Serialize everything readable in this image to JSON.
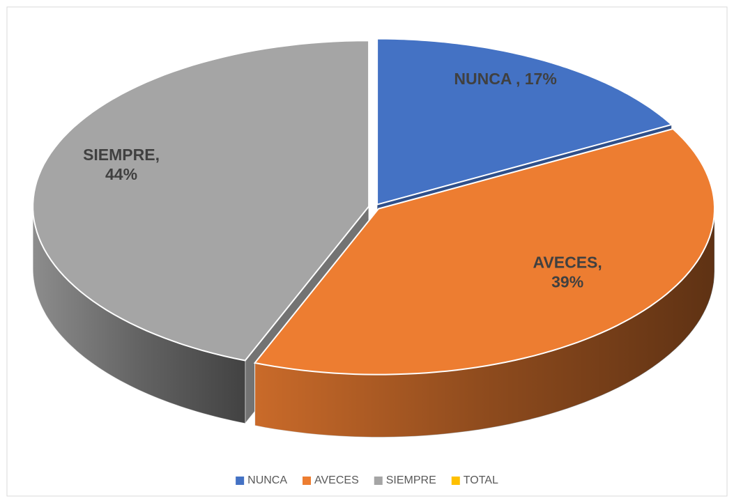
{
  "chart_data": {
    "type": "pie3d",
    "categories": [
      "NUNCA",
      "AVECES",
      "SIEMPRE",
      "TOTAL"
    ],
    "values": [
      17,
      39,
      44,
      null
    ],
    "value_labels": [
      "NUNCA , 17%",
      "AVECES, 39%",
      "SIEMPRE, 44%",
      null
    ],
    "colors": [
      "#4472c4",
      "#ed7d31",
      "#a5a5a5",
      "#ffc000"
    ],
    "legend": "bottom"
  }
}
